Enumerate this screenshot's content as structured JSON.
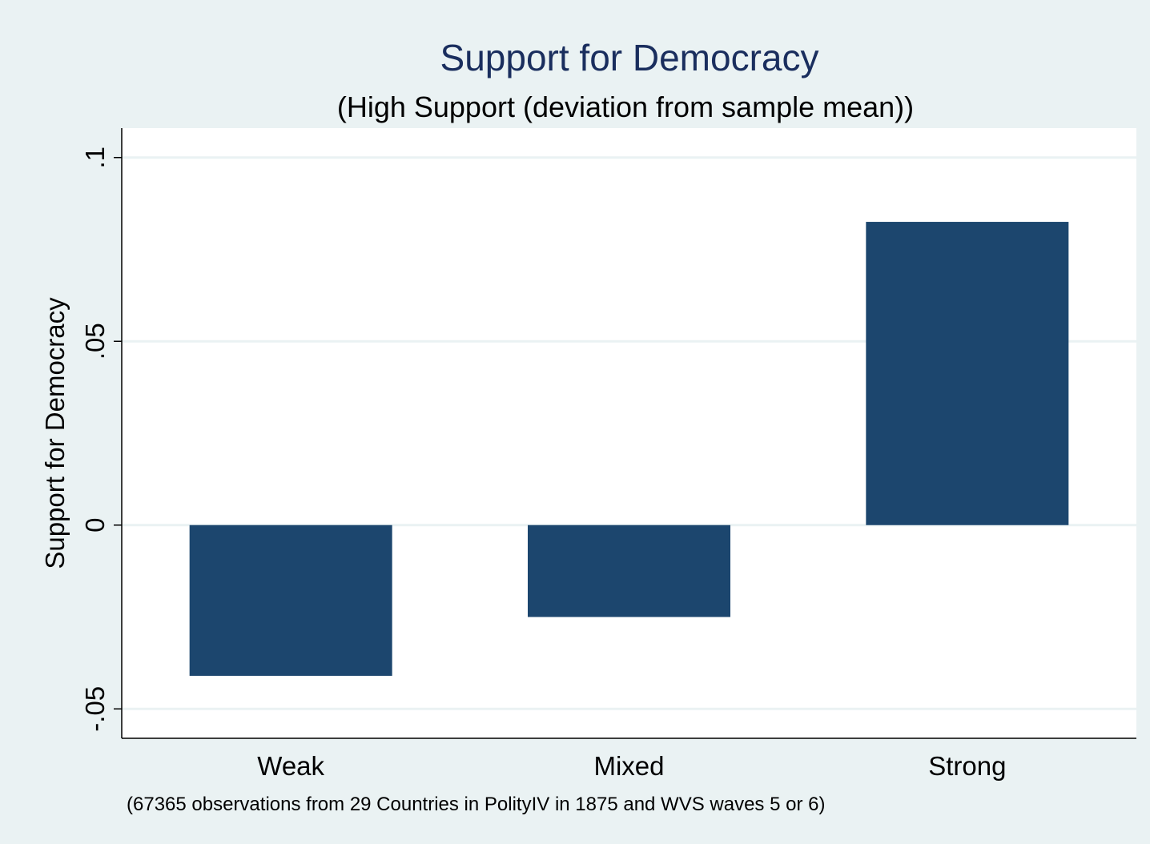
{
  "chart_data": {
    "type": "bar",
    "title": "Support for Democracy",
    "subtitle": "(High Support (deviation from sample mean))",
    "xlabel": "",
    "ylabel": "Support for Democracy",
    "categories": [
      "Weak",
      "Mixed",
      "Strong"
    ],
    "values": [
      -0.041,
      -0.025,
      0.0825
    ],
    "ylim": [
      -0.058,
      0.108
    ],
    "yticks": [
      {
        "value": -0.05,
        "label": "-.05"
      },
      {
        "value": 0,
        "label": "0"
      },
      {
        "value": 0.05,
        "label": ".05"
      },
      {
        "value": 0.1,
        "label": ".1"
      }
    ],
    "grid": true,
    "legend": "none",
    "note": "(67365 observations from 29 Countries in PolityIV in 1875 and WVS waves 5 or 6)",
    "colors": {
      "background": "#eaf2f3",
      "plot_area": "#ffffff",
      "bar": "#1c466e",
      "title": "#1a2e5e",
      "grid": "#eaf2f3"
    }
  }
}
